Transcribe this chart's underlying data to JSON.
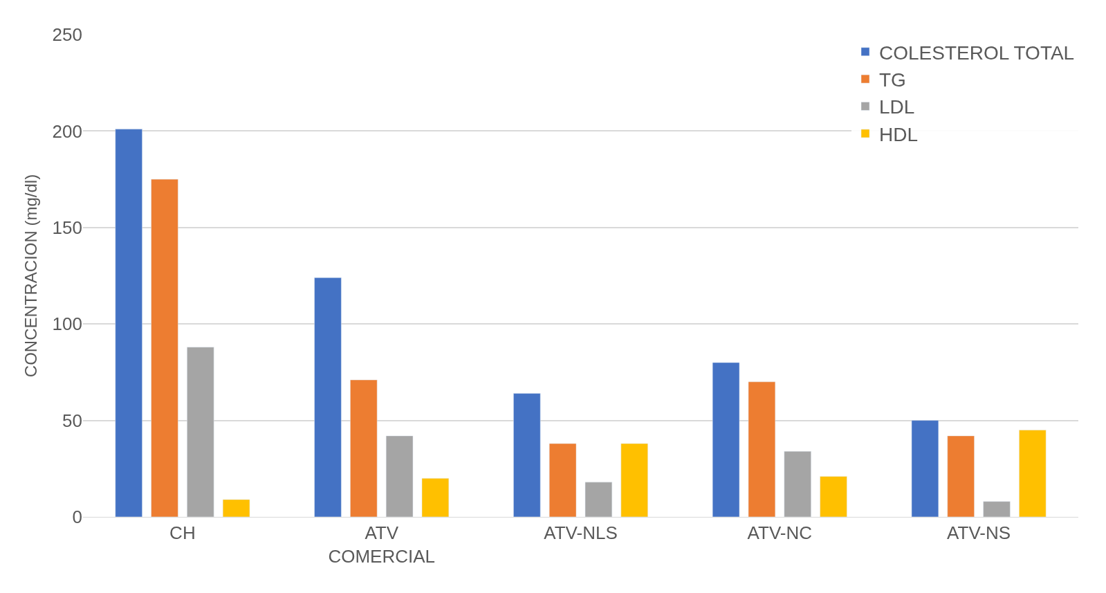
{
  "chart_data": {
    "type": "bar",
    "ylabel": "CONCENTRACION (mg/dl)",
    "categories": [
      "CH",
      "ATV\nCOMERCIAL",
      "ATV-NLS",
      "ATV-NC",
      "ATV-NS"
    ],
    "series": [
      {
        "name": "COLESTEROL TOTAL",
        "color": "#4472c4",
        "values": [
          201,
          124,
          64,
          80,
          50
        ]
      },
      {
        "name": "TG",
        "color": "#ed7d31",
        "values": [
          175,
          71,
          38,
          70,
          42
        ]
      },
      {
        "name": "LDL",
        "color": "#a5a5a5",
        "values": [
          88,
          42,
          18,
          34,
          8
        ]
      },
      {
        "name": "HDL",
        "color": "#ffc000",
        "values": [
          9,
          20,
          38,
          21,
          45
        ]
      }
    ],
    "ylim": [
      0,
      250
    ],
    "yticks": [
      0,
      50,
      100,
      150,
      200,
      250
    ],
    "grid": "y",
    "legend": "top right"
  }
}
